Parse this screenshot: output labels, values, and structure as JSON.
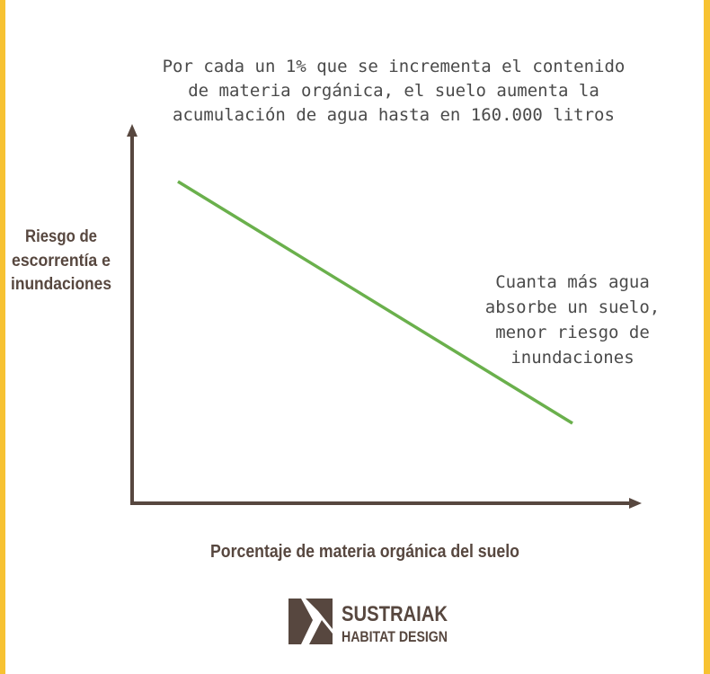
{
  "title": [
    "Por cada un 1% que se incrementa el contenido",
    "de materia orgánica, el suelo aumenta la",
    "acumulación de agua hasta en 160.000 litros"
  ],
  "y_axis_label": [
    "Riesgo de",
    "escorrentía e",
    "inundaciones"
  ],
  "annotation": [
    "Cuanta más agua",
    "absorbe un suelo,",
    "menor riesgo de",
    "inundaciones"
  ],
  "x_axis_label": "Porcentaje de materia orgánica del suelo",
  "logo": {
    "name": "SUSTRAIAK",
    "tagline": "HABITAT DESIGN"
  }
}
